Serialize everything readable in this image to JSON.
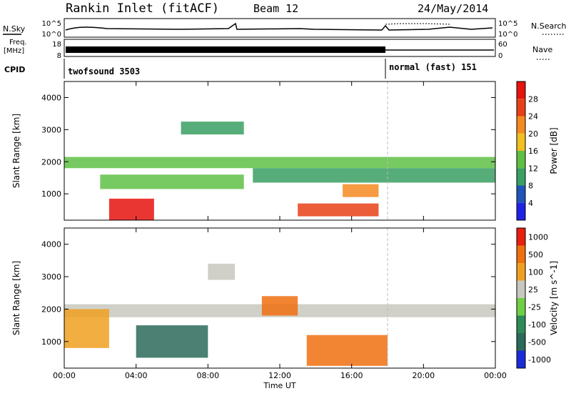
{
  "header": {
    "site": "Rankin Inlet (fitACF)",
    "beam": "Beam 12",
    "date": "24/May/2014"
  },
  "top_panels": {
    "nsky_label": "N.Sky",
    "nsky_ticks": [
      "10^5",
      "10^0"
    ],
    "nsearch_label": "N.Search",
    "nsearch_ticks": [
      "10^5",
      "10^0"
    ],
    "freq_label": "Freq.",
    "freq_unit": "[MHz]",
    "freq_ticks": [
      "18",
      "8"
    ],
    "nave_label": "Nave",
    "nave_ticks": [
      "60",
      "0"
    ],
    "cpid_label": "CPID",
    "cpid_modes": [
      {
        "name": "twofsound 3503",
        "start_hour": 0
      },
      {
        "name": "normal (fast) 151",
        "start_hour": 18
      }
    ]
  },
  "chart_data": [
    {
      "type": "heatmap",
      "parameter": "Power",
      "ylabel": "Slant Range [km]",
      "xlabel": "",
      "x_ticks": [
        "00:00",
        "04:00",
        "08:00",
        "12:00",
        "16:00",
        "20:00",
        "00:00"
      ],
      "xlim_hours": [
        0,
        24
      ],
      "y_ticks": [
        1000,
        2000,
        3000,
        4000
      ],
      "ylim_km": [
        180,
        4500
      ],
      "colorbar": {
        "label": "Power [dB]",
        "ticks": [
          "4",
          "8",
          "12",
          "16",
          "20",
          "24",
          "28"
        ],
        "colors": [
          "#1e22e6",
          "#2154b8",
          "#3a9f62",
          "#5fbf45",
          "#f0c020",
          "#f58a20",
          "#e84016",
          "#e6130f"
        ]
      },
      "regions": [
        {
          "t0": 0.0,
          "t1": 24.0,
          "r0": 1800,
          "r1": 2150,
          "level": 3
        },
        {
          "t0": 2.0,
          "t1": 10.0,
          "r0": 1150,
          "r1": 1600,
          "level": 3
        },
        {
          "t0": 2.5,
          "t1": 5.0,
          "r0": 180,
          "r1": 850,
          "level": 7
        },
        {
          "t0": 6.5,
          "t1": 10.0,
          "r0": 2850,
          "r1": 3250,
          "level": 2
        },
        {
          "t0": 13.0,
          "t1": 17.5,
          "r0": 300,
          "r1": 700,
          "level": 6
        },
        {
          "t0": 15.5,
          "t1": 17.5,
          "r0": 900,
          "r1": 1300,
          "level": 5
        },
        {
          "t0": 10.5,
          "t1": 24.0,
          "r0": 1350,
          "r1": 1800,
          "level": 2
        }
      ]
    },
    {
      "type": "heatmap",
      "parameter": "Velocity",
      "ylabel": "Slant Range [km]",
      "xlabel": "Time UT",
      "x_ticks": [
        "00:00",
        "04:00",
        "08:00",
        "12:00",
        "16:00",
        "20:00",
        "00:00"
      ],
      "xlim_hours": [
        0,
        24
      ],
      "y_ticks": [
        1000,
        2000,
        3000,
        4000
      ],
      "ylim_km": [
        180,
        4500
      ],
      "colorbar": {
        "label": "Velocity [m s^-1]",
        "ticks": [
          "1000",
          "500",
          "100",
          "25",
          "-25",
          "-100",
          "-500",
          "-1000"
        ],
        "colors": [
          "#1c2bd8",
          "#2c6a5a",
          "#2e8b57",
          "#6fcf45",
          "#c8c8c0",
          "#f0a020",
          "#f07010",
          "#e82010"
        ]
      },
      "regions": [
        {
          "t0": 0.0,
          "t1": 24.0,
          "r0": 1750,
          "r1": 2150,
          "level": 4
        },
        {
          "t0": 4.0,
          "t1": 8.0,
          "r0": 500,
          "r1": 1500,
          "level": 1
        },
        {
          "t0": 0.0,
          "t1": 2.5,
          "r0": 800,
          "r1": 2000,
          "level": 5
        },
        {
          "t0": 8.0,
          "t1": 9.5,
          "r0": 2900,
          "r1": 3400,
          "level": 4
        },
        {
          "t0": 11.0,
          "t1": 13.0,
          "r0": 1800,
          "r1": 2400,
          "level": 6
        },
        {
          "t0": 13.5,
          "t1": 18.0,
          "r0": 250,
          "r1": 1200,
          "level": 6
        }
      ]
    }
  ]
}
